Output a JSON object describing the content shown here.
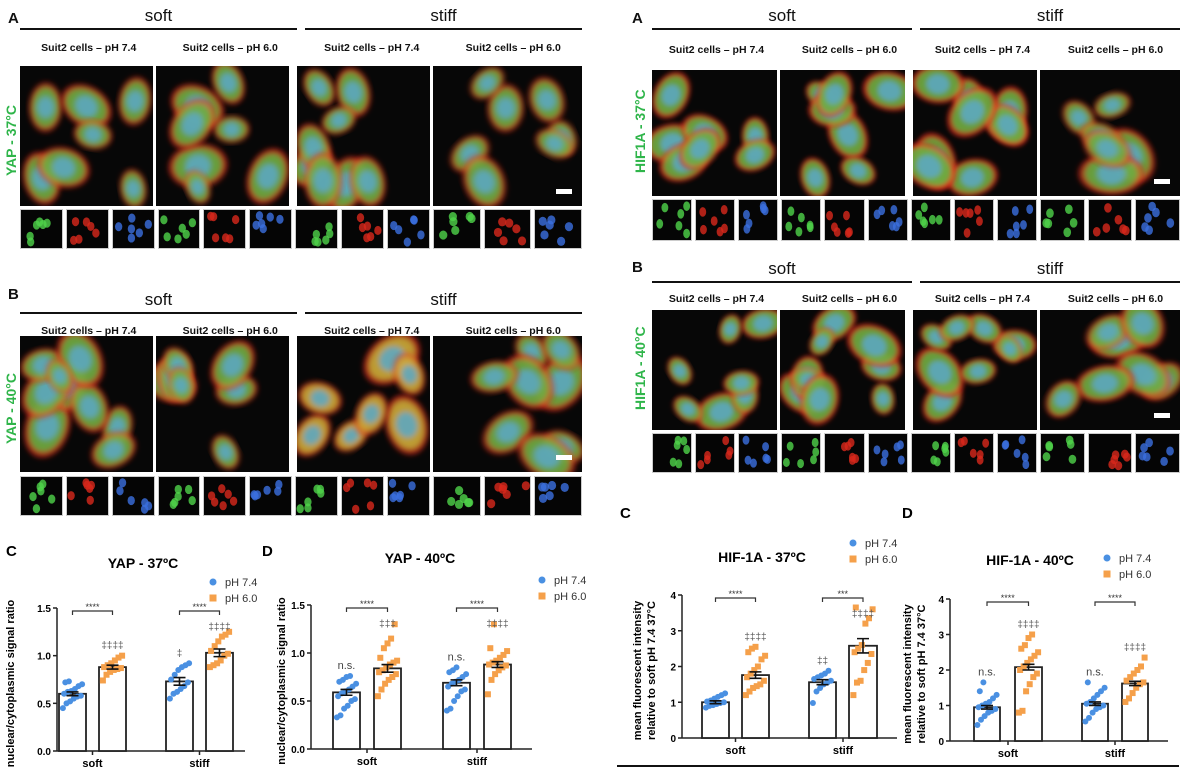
{
  "figure_sections": [
    {
      "id": "yap37",
      "letter": "A",
      "row_label": "YAP - 37°C",
      "groups": [
        {
          "label": "soft",
          "columns": [
            "Suit2 cells – pH 7.4",
            "Suit2 cells – pH 6.0"
          ]
        },
        {
          "label": "stiff",
          "columns": [
            "Suit2 cells – pH 7.4",
            "Suit2 cells – pH 6.0"
          ]
        }
      ]
    },
    {
      "id": "yap40",
      "letter": "B",
      "row_label": "YAP - 40°C",
      "groups": [
        {
          "label": "soft",
          "columns": [
            "Suit2 cells – pH 7.4",
            "Suit2 cells – pH 6.0"
          ]
        },
        {
          "label": "stiff",
          "columns": [
            "Suit2 cells – pH 7.4",
            "Suit2 cells – pH 6.0"
          ]
        }
      ]
    },
    {
      "id": "hif37",
      "letter": "A",
      "row_label": "HIF1A - 37°C",
      "groups": [
        {
          "label": "soft",
          "columns": [
            "Suit2 cells – pH 7.4",
            "Suit2 cells – pH 6.0"
          ]
        },
        {
          "label": "stiff",
          "columns": [
            "Suit2 cells – pH 7.4",
            "Suit2 cells – pH 6.0"
          ]
        }
      ]
    },
    {
      "id": "hif40",
      "letter": "B",
      "row_label": "HIF1A - 40°C",
      "groups": [
        {
          "label": "soft",
          "columns": [
            "Suit2 cells – pH 7.4",
            "Suit2 cells – pH 6.0"
          ]
        },
        {
          "label": "stiff",
          "columns": [
            "Suit2 cells – pH 7.4",
            "Suit2 cells – pH 6.0"
          ]
        }
      ]
    }
  ],
  "stain_colors": {
    "green": "#4fd34a",
    "red": "#d8281c",
    "blue": "#3b6fe0"
  },
  "series_colors": {
    "pH 7.4": "#4a90e2",
    "pH 6.0": "#f5a04a"
  },
  "chart_data": [
    {
      "type": "bar",
      "panel": "C",
      "title": "YAP - 37ºC",
      "ylabel": "nuclear/cytoplasmic signal ratio",
      "xlabel": "",
      "categories": [
        "soft",
        "stiff"
      ],
      "ylim": [
        0,
        1.5
      ],
      "yticks": [
        "0.0",
        "0.5",
        "1.0",
        "1.5"
      ],
      "ytick_values": [
        0,
        0.5,
        1.0,
        1.5
      ],
      "legend": [
        "pH 7.4",
        "pH 6.0"
      ],
      "legend_position": "top-right",
      "series": [
        {
          "name": "pH 7.4",
          "marker": "circle",
          "means": [
            0.6,
            0.73
          ],
          "sem": [
            0.02,
            0.04
          ],
          "annotations": [
            "",
            "‡"
          ],
          "points": [
            [
              0.45,
              0.5,
              0.52,
              0.55,
              0.57,
              0.58,
              0.6,
              0.62,
              0.63,
              0.65,
              0.68,
              0.7,
              0.72,
              0.73
            ],
            [
              0.55,
              0.6,
              0.62,
              0.65,
              0.68,
              0.72,
              0.75,
              0.8,
              0.85,
              0.88,
              0.9,
              0.92
            ]
          ]
        },
        {
          "name": "pH 6.0",
          "marker": "square",
          "means": [
            0.88,
            1.03
          ],
          "sem": [
            0.02,
            0.04
          ],
          "annotations": [
            "‡‡‡‡",
            "‡‡‡‡"
          ],
          "points": [
            [
              0.74,
              0.8,
              0.83,
              0.85,
              0.86,
              0.87,
              0.88,
              0.9,
              0.92,
              0.95,
              0.98,
              1.0
            ],
            [
              0.88,
              0.9,
              0.92,
              0.95,
              1.0,
              1.02,
              1.05,
              1.1,
              1.15,
              1.2,
              1.22,
              1.25
            ]
          ]
        }
      ],
      "brackets": [
        "****",
        "****"
      ]
    },
    {
      "type": "bar",
      "panel": "D",
      "title": "YAP - 40ºC",
      "ylabel": "nuclear/cytoplasmic signal ratio",
      "xlabel": "",
      "categories": [
        "soft",
        "stiff"
      ],
      "ylim": [
        0,
        1.5
      ],
      "yticks": [
        "0.0",
        "0.5",
        "1.0",
        "1.5"
      ],
      "ytick_values": [
        0,
        0.5,
        1.0,
        1.5
      ],
      "legend": [
        "pH 7.4",
        "pH 6.0"
      ],
      "legend_position": "top-right",
      "series": [
        {
          "name": "pH 7.4",
          "marker": "circle",
          "means": [
            0.59,
            0.69
          ],
          "sem": [
            0.03,
            0.03
          ],
          "annotations": [
            "n.s.",
            "n.s."
          ],
          "points": [
            [
              0.33,
              0.35,
              0.42,
              0.45,
              0.5,
              0.52,
              0.55,
              0.58,
              0.6,
              0.62,
              0.65,
              0.68,
              0.7,
              0.72,
              0.75,
              0.76
            ],
            [
              0.4,
              0.42,
              0.5,
              0.55,
              0.6,
              0.62,
              0.65,
              0.68,
              0.7,
              0.72,
              0.75,
              0.78,
              0.8,
              0.82,
              0.85
            ]
          ]
        },
        {
          "name": "pH 6.0",
          "marker": "square",
          "means": [
            0.84,
            0.88
          ],
          "sem": [
            0.04,
            0.03
          ],
          "annotations": [
            "‡‡‡",
            "‡‡‡‡"
          ],
          "points": [
            [
              0.55,
              0.62,
              0.68,
              0.72,
              0.75,
              0.78,
              0.8,
              0.82,
              0.85,
              0.88,
              0.9,
              0.92,
              0.95,
              1.05,
              1.1,
              1.15,
              1.3
            ],
            [
              0.57,
              0.72,
              0.78,
              0.82,
              0.85,
              0.87,
              0.88,
              0.9,
              0.92,
              0.95,
              0.98,
              1.02,
              1.05,
              1.3
            ]
          ]
        }
      ],
      "brackets": [
        "****",
        "****"
      ]
    },
    {
      "type": "bar",
      "panel": "C",
      "title": "HIF-1A - 37ºC",
      "ylabel": "mean fluorescent intensity|relative to soft pH 7.4 37°C",
      "xlabel": "",
      "categories": [
        "soft",
        "stiff"
      ],
      "ylim": [
        0,
        4
      ],
      "yticks": [
        "0",
        "1",
        "2",
        "3",
        "4"
      ],
      "ytick_values": [
        0,
        1,
        2,
        3,
        4
      ],
      "legend": [
        "pH 7.4",
        "pH 6.0"
      ],
      "legend_position": "top-right",
      "series": [
        {
          "name": "pH 7.4",
          "marker": "circle",
          "means": [
            1.0,
            1.56
          ],
          "sem": [
            0.04,
            0.07
          ],
          "annotations": [
            "",
            "‡‡"
          ],
          "points": [
            [
              0.85,
              0.9,
              0.92,
              0.95,
              0.98,
              1.0,
              1.02,
              1.05,
              1.1,
              1.15,
              1.2,
              1.25
            ],
            [
              0.98,
              1.3,
              1.4,
              1.5,
              1.55,
              1.6,
              1.65,
              1.7,
              1.75,
              1.8,
              1.88
            ]
          ]
        },
        {
          "name": "pH 6.0",
          "marker": "square",
          "means": [
            1.76,
            2.58
          ],
          "sem": [
            0.09,
            0.2
          ],
          "annotations": [
            "‡‡‡‡",
            "‡‡‡‡"
          ],
          "points": [
            [
              1.2,
              1.3,
              1.4,
              1.45,
              1.5,
              1.6,
              1.7,
              1.8,
              1.9,
              2.0,
              2.2,
              2.3,
              2.4,
              2.5,
              2.55
            ],
            [
              1.2,
              1.55,
              1.6,
              1.9,
              2.1,
              2.35,
              2.4,
              2.5,
              2.6,
              3.2,
              3.35,
              3.6,
              3.65
            ]
          ]
        }
      ],
      "brackets": [
        "****",
        "***"
      ]
    },
    {
      "type": "bar",
      "panel": "D",
      "title": "HIF-1A - 40ºC",
      "ylabel": "mean fluorescent intensity|relative to soft pH 7.4 37°C",
      "xlabel": "",
      "categories": [
        "soft",
        "stiff"
      ],
      "ylim": [
        0,
        4
      ],
      "yticks": [
        "0",
        "1",
        "2",
        "3",
        "4"
      ],
      "ytick_values": [
        0,
        1,
        2,
        3,
        4
      ],
      "legend": [
        "pH 7.4",
        "pH 6.0"
      ],
      "legend_position": "top-right",
      "series": [
        {
          "name": "pH 7.4",
          "marker": "circle",
          "means": [
            0.95,
            1.05
          ],
          "sem": [
            0.05,
            0.05
          ],
          "annotations": [
            "n.s.",
            "n.s."
          ],
          "points": [
            [
              0.45,
              0.6,
              0.7,
              0.8,
              0.85,
              0.9,
              0.95,
              1.0,
              1.05,
              1.1,
              1.2,
              1.3,
              1.4,
              1.65
            ],
            [
              0.55,
              0.65,
              0.8,
              0.9,
              0.95,
              1.0,
              1.05,
              1.1,
              1.2,
              1.3,
              1.4,
              1.5,
              1.65
            ]
          ]
        },
        {
          "name": "pH 6.0",
          "marker": "square",
          "means": [
            2.08,
            1.62
          ],
          "sem": [
            0.08,
            0.06
          ],
          "annotations": [
            "‡‡‡‡",
            "‡‡‡‡"
          ],
          "points": [
            [
              0.8,
              0.85,
              1.4,
              1.6,
              1.8,
              1.9,
              2.0,
              2.1,
              2.2,
              2.3,
              2.4,
              2.5,
              2.6,
              2.7,
              2.9,
              3.0
            ],
            [
              1.1,
              1.2,
              1.35,
              1.5,
              1.6,
              1.65,
              1.7,
              1.8,
              1.9,
              2.0,
              2.1,
              2.35
            ]
          ]
        }
      ],
      "brackets": [
        "****",
        "****"
      ]
    }
  ]
}
